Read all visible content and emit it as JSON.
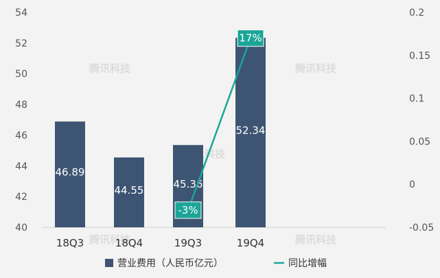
{
  "chart_data": {
    "type": "bar",
    "categories": [
      "18Q3",
      "18Q4",
      "19Q3",
      "19Q4"
    ],
    "series": [
      {
        "name": "营业费用（人民币亿元）",
        "type": "bar",
        "axis": "left",
        "values": [
          46.89,
          44.55,
          45.36,
          52.34
        ],
        "data_labels": [
          "46.89",
          "44.55",
          "45.36",
          "52.34"
        ],
        "color": "#3d5573"
      },
      {
        "name": "同比增幅",
        "type": "line",
        "axis": "right",
        "points": [
          {
            "category": "19Q3",
            "value": -0.03
          },
          {
            "category": "19Q4",
            "value": 0.17
          }
        ],
        "data_labels": [
          "-3%",
          "17%"
        ],
        "color": "#1aa597"
      }
    ],
    "left_axis": {
      "ylim": [
        40,
        54
      ],
      "ticks": [
        40,
        42,
        44,
        46,
        48,
        50,
        52,
        54
      ]
    },
    "right_axis": {
      "ylim": [
        -0.05,
        0.2
      ],
      "ticks": [
        "-0.05",
        "0",
        "0.05",
        "0.1",
        "0.15",
        "0.2"
      ]
    },
    "grid": false,
    "legend_position": "bottom",
    "watermark": "腾讯科技"
  }
}
